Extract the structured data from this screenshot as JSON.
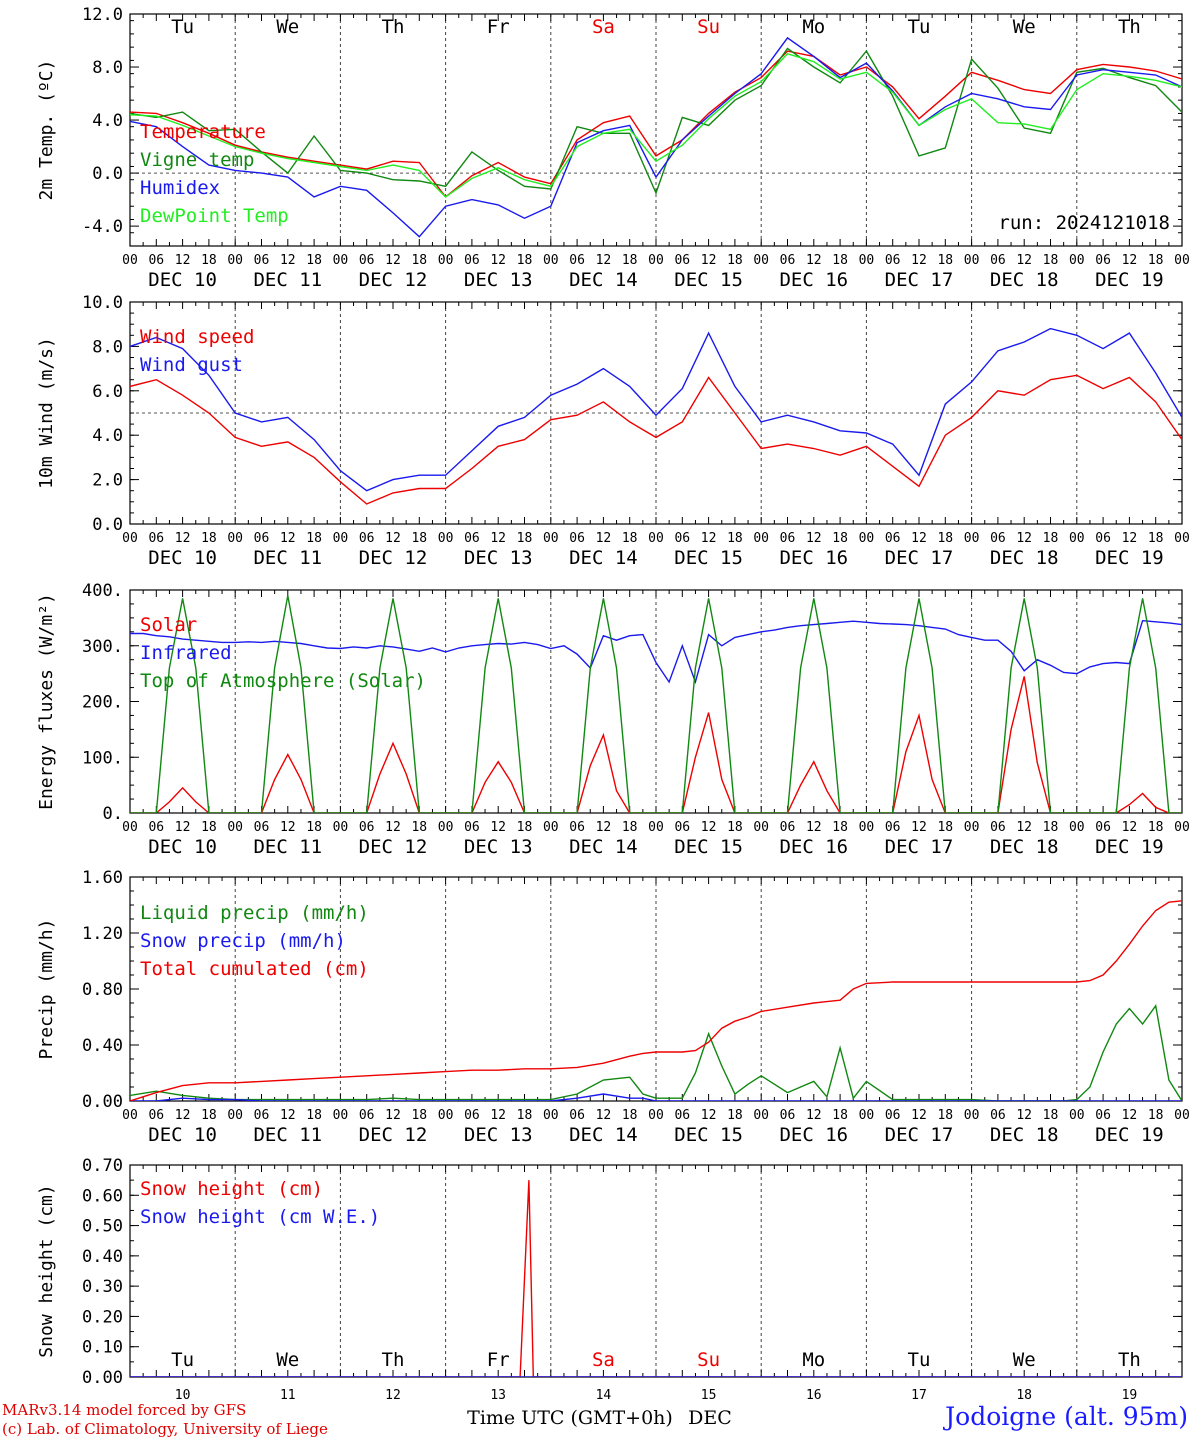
{
  "colors": {
    "red": "#ee0000",
    "green": "#118811",
    "blue": "#1a1aee",
    "lightgreen": "#22ee22",
    "black": "#000000"
  },
  "days": [
    "Tu",
    "We",
    "Th",
    "Fr",
    "Sa",
    "Su",
    "Mo",
    "Tu",
    "We",
    "Th"
  ],
  "weekend_days": [
    4,
    5
  ],
  "dates": [
    "DEC 10",
    "DEC 11",
    "DEC 12",
    "DEC 13",
    "DEC 14",
    "DEC 15",
    "DEC 16",
    "DEC 17",
    "DEC 18",
    "DEC 19"
  ],
  "hour_ticks": [
    "00",
    "06",
    "12",
    "18"
  ],
  "hour_end": "00",
  "bottom_dates": [
    "10",
    "11",
    "12",
    "13",
    "14",
    "15",
    "16",
    "17",
    "18",
    "19"
  ],
  "xlabel": "Time UTC (GMT+0h)",
  "month": "DEC",
  "footer": {
    "line1": "MARv3.14 model forced by GFS",
    "line2": "(c) Lab. of Climatology, University of Liege"
  },
  "station": "Jodoigne (alt. 95m)",
  "chart_data": [
    {
      "type": "line",
      "ylabel": "2m Temp. (ºC)",
      "ylim": [
        -5.5,
        12
      ],
      "yticks": [
        -4,
        0,
        4,
        8,
        12
      ],
      "yticklabels": [
        "-4.0",
        "0.0",
        "4.0",
        "8.0",
        "12.0"
      ],
      "refline": 0,
      "annotation": "run: 2024121018",
      "x": [
        0,
        6,
        12,
        18,
        24,
        30,
        36,
        42,
        48,
        54,
        60,
        66,
        72,
        78,
        84,
        90,
        96,
        102,
        108,
        114,
        120,
        126,
        132,
        138,
        144,
        150,
        156,
        162,
        168,
        174,
        180,
        186,
        192,
        198,
        204,
        210,
        216,
        222,
        228,
        234,
        240
      ],
      "series": [
        {
          "name": "Temperature",
          "color": "red",
          "values": [
            4.6,
            4.5,
            3.8,
            3.0,
            2.1,
            1.6,
            1.2,
            0.9,
            0.6,
            0.3,
            0.9,
            0.8,
            -1.8,
            -0.2,
            0.8,
            -0.3,
            -0.8,
            2.5,
            3.8,
            4.3,
            1.3,
            2.5,
            4.5,
            6.1,
            7.2,
            9.2,
            8.8,
            7.4,
            8.0,
            6.5,
            4.1,
            5.8,
            7.6,
            7.0,
            6.3,
            6.0,
            7.8,
            8.2,
            8.0,
            7.7,
            7.1
          ]
        },
        {
          "name": "Vigne temp",
          "color": "green",
          "values": [
            4.5,
            4.2,
            4.6,
            3.2,
            3.3,
            1.6,
            0.0,
            2.8,
            0.2,
            0.0,
            -0.5,
            -0.6,
            -1.0,
            1.6,
            0.2,
            -1.0,
            -1.2,
            3.5,
            3.0,
            3.0,
            -1.5,
            4.2,
            3.6,
            5.5,
            6.6,
            9.4,
            8.0,
            6.8,
            9.2,
            5.8,
            1.3,
            1.9,
            8.6,
            6.4,
            3.4,
            3.0,
            7.6,
            7.9,
            7.2,
            6.6,
            4.6
          ]
        },
        {
          "name": "Humidex",
          "color": "blue",
          "values": [
            3.9,
            3.5,
            2.0,
            0.6,
            0.2,
            0.0,
            -0.3,
            -1.8,
            -1.0,
            -1.3,
            -3.0,
            -4.8,
            -2.5,
            -2.0,
            -2.4,
            -3.4,
            -2.5,
            2.3,
            3.2,
            3.6,
            -0.3,
            2.5,
            4.3,
            6.0,
            7.5,
            10.2,
            8.8,
            7.2,
            8.3,
            6.2,
            3.6,
            5.0,
            6.0,
            5.6,
            5.0,
            4.8,
            7.4,
            7.8,
            7.6,
            7.4,
            6.5
          ]
        },
        {
          "name": "DewPoint Temp",
          "color": "lightgreen",
          "values": [
            4.4,
            4.3,
            3.6,
            2.8,
            2.0,
            1.5,
            1.1,
            0.8,
            0.5,
            0.2,
            0.6,
            0.2,
            -1.8,
            -0.4,
            0.4,
            -0.5,
            -1.0,
            2.0,
            3.0,
            3.3,
            0.9,
            2.1,
            4.1,
            5.8,
            6.9,
            9.0,
            8.4,
            7.1,
            7.6,
            6.1,
            3.6,
            4.8,
            5.6,
            3.8,
            3.7,
            3.3,
            6.3,
            7.5,
            7.3,
            7.0,
            6.5
          ]
        }
      ]
    },
    {
      "type": "line",
      "ylabel": "10m Wind (m/s)",
      "ylim": [
        0,
        10
      ],
      "yticks": [
        0,
        2,
        4,
        6,
        8,
        10
      ],
      "yticklabels": [
        "0.0",
        "2.0",
        "4.0",
        "6.0",
        "8.0",
        "10.0"
      ],
      "refline": 5,
      "x": [
        0,
        6,
        12,
        18,
        24,
        30,
        36,
        42,
        48,
        54,
        60,
        66,
        72,
        78,
        84,
        90,
        96,
        102,
        108,
        114,
        120,
        126,
        132,
        138,
        144,
        150,
        156,
        162,
        168,
        174,
        180,
        186,
        192,
        198,
        204,
        210,
        216,
        222,
        228,
        234,
        240
      ],
      "series": [
        {
          "name": "Wind speed",
          "color": "red",
          "values": [
            6.2,
            6.5,
            5.8,
            5.0,
            3.9,
            3.5,
            3.7,
            3.0,
            1.9,
            0.9,
            1.4,
            1.6,
            1.6,
            2.5,
            3.5,
            3.8,
            4.7,
            4.9,
            5.5,
            4.6,
            3.9,
            4.6,
            6.6,
            5.0,
            3.4,
            3.6,
            3.4,
            3.1,
            3.5,
            2.6,
            1.7,
            4.0,
            4.8,
            6.0,
            5.8,
            6.5,
            6.7,
            6.1,
            6.6,
            5.5,
            3.8
          ]
        },
        {
          "name": "Wind gust",
          "color": "blue",
          "values": [
            8.0,
            8.4,
            7.9,
            6.7,
            5.0,
            4.6,
            4.8,
            3.8,
            2.4,
            1.5,
            2.0,
            2.2,
            2.2,
            3.3,
            4.4,
            4.8,
            5.8,
            6.3,
            7.0,
            6.2,
            4.9,
            6.1,
            8.6,
            6.2,
            4.6,
            4.9,
            4.6,
            4.2,
            4.1,
            3.6,
            2.2,
            5.4,
            6.4,
            7.8,
            8.2,
            8.8,
            8.5,
            7.9,
            8.6,
            6.8,
            4.8
          ]
        }
      ]
    },
    {
      "type": "line",
      "ylabel": "Energy fluxes (W/m²)",
      "ylim": [
        0,
        400
      ],
      "yticks": [
        0,
        100,
        200,
        300,
        400
      ],
      "yticklabels": [
        "0.",
        "100.",
        "200.",
        "300.",
        "400."
      ],
      "x": [
        0,
        3,
        6,
        9,
        12,
        15,
        18,
        21,
        24,
        27,
        30,
        33,
        36,
        39,
        42,
        45,
        48,
        51,
        54,
        57,
        60,
        63,
        66,
        69,
        72,
        75,
        78,
        81,
        84,
        87,
        90,
        93,
        96,
        99,
        102,
        105,
        108,
        111,
        114,
        117,
        120,
        123,
        126,
        129,
        132,
        135,
        138,
        141,
        144,
        147,
        150,
        153,
        156,
        159,
        162,
        165,
        168,
        171,
        174,
        177,
        180,
        183,
        186,
        189,
        192,
        195,
        198,
        201,
        204,
        207,
        210,
        213,
        216,
        219,
        222,
        225,
        228,
        231,
        234,
        237,
        240
      ],
      "series": [
        {
          "name": "Solar",
          "color": "red",
          "values": [
            0,
            0,
            0,
            20,
            45,
            20,
            0,
            0,
            0,
            0,
            0,
            60,
            105,
            60,
            0,
            0,
            0,
            0,
            0,
            70,
            125,
            70,
            0,
            0,
            0,
            0,
            0,
            55,
            92,
            55,
            0,
            0,
            0,
            0,
            0,
            85,
            140,
            40,
            0,
            0,
            0,
            0,
            0,
            100,
            180,
            60,
            0,
            0,
            0,
            0,
            0,
            50,
            92,
            40,
            0,
            0,
            0,
            0,
            0,
            110,
            175,
            60,
            0,
            0,
            0,
            0,
            0,
            150,
            245,
            90,
            0,
            0,
            0,
            0,
            0,
            0,
            15,
            35,
            10,
            0,
            0
          ]
        },
        {
          "name": "Infrared",
          "color": "blue",
          "values": [
            322,
            322,
            318,
            316,
            312,
            310,
            308,
            306,
            306,
            307,
            306,
            308,
            306,
            304,
            300,
            296,
            295,
            298,
            296,
            300,
            298,
            294,
            290,
            296,
            289,
            296,
            300,
            302,
            304,
            303,
            306,
            302,
            295,
            300,
            285,
            260,
            318,
            310,
            318,
            320,
            270,
            235,
            300,
            235,
            320,
            300,
            315,
            320,
            325,
            328,
            333,
            336,
            338,
            340,
            342,
            344,
            342,
            340,
            339,
            338,
            336,
            333,
            330,
            320,
            315,
            310,
            310,
            290,
            255,
            275,
            265,
            252,
            250,
            262,
            268,
            270,
            268,
            345,
            343,
            341,
            338
          ]
        },
        {
          "name": "Top of Atmosphere (Solar)",
          "color": "green",
          "values": [
            0,
            0,
            0,
            260,
            385,
            260,
            0,
            0,
            0,
            0,
            0,
            260,
            390,
            260,
            0,
            0,
            0,
            0,
            0,
            260,
            385,
            260,
            0,
            0,
            0,
            0,
            0,
            260,
            385,
            260,
            0,
            0,
            0,
            0,
            0,
            260,
            385,
            260,
            0,
            0,
            0,
            0,
            0,
            260,
            385,
            260,
            0,
            0,
            0,
            0,
            0,
            260,
            385,
            260,
            0,
            0,
            0,
            0,
            0,
            260,
            385,
            260,
            0,
            0,
            0,
            0,
            0,
            260,
            385,
            260,
            0,
            0,
            0,
            0,
            0,
            0,
            260,
            385,
            260,
            0,
            0
          ]
        }
      ]
    },
    {
      "type": "line",
      "ylabel": "Precip (mm/h)",
      "ylim": [
        0,
        1.6
      ],
      "yticks": [
        0,
        0.4,
        0.8,
        1.2,
        1.6
      ],
      "yticklabels": [
        "0.00",
        "0.40",
        "0.80",
        "1.20",
        "1.60"
      ],
      "x": [
        0,
        6,
        12,
        18,
        24,
        30,
        36,
        42,
        48,
        54,
        60,
        66,
        72,
        78,
        84,
        90,
        96,
        102,
        108,
        114,
        117,
        120,
        126,
        129,
        132,
        135,
        138,
        141,
        144,
        150,
        156,
        159,
        162,
        165,
        168,
        174,
        180,
        186,
        192,
        198,
        204,
        210,
        213,
        216,
        219,
        222,
        225,
        228,
        231,
        234,
        237,
        240
      ],
      "series": [
        {
          "name": "Liquid precip (mm/h)",
          "color": "green",
          "values": [
            0.04,
            0.07,
            0.04,
            0.02,
            0.01,
            0.01,
            0.01,
            0.01,
            0.01,
            0.01,
            0.02,
            0.01,
            0.01,
            0.01,
            0.01,
            0.01,
            0.01,
            0.05,
            0.15,
            0.17,
            0.05,
            0.02,
            0.02,
            0.2,
            0.48,
            0.25,
            0.05,
            0.12,
            0.18,
            0.06,
            0.14,
            0.03,
            0.38,
            0.02,
            0.14,
            0.01,
            0.01,
            0.01,
            0.01,
            0.0,
            0.0,
            0.0,
            0.0,
            0.01,
            0.1,
            0.35,
            0.55,
            0.66,
            0.55,
            0.68,
            0.15,
            0.0
          ]
        },
        {
          "name": "Snow precip (mm/h)",
          "color": "blue",
          "values": [
            0.0,
            0.0,
            0.02,
            0.01,
            0.01,
            0.0,
            0.0,
            0.0,
            0.0,
            0.0,
            0.0,
            0.0,
            0.0,
            0.0,
            0.0,
            0.0,
            0.0,
            0.02,
            0.05,
            0.02,
            0.02,
            0.0,
            0.0,
            0.0,
            0.0,
            0.0,
            0.0,
            0.0,
            0.0,
            0.0,
            0.0,
            0.0,
            0.0,
            0.0,
            0.0,
            0.0,
            0.0,
            0.0,
            0.0,
            0.0,
            0.0,
            0.0,
            0.0,
            0.0,
            0.0,
            0.0,
            0.0,
            0.0,
            0.0,
            0.0,
            0.0,
            0.0
          ]
        },
        {
          "name": "Total cumulated (cm)",
          "color": "red",
          "values": [
            0.0,
            0.06,
            0.11,
            0.13,
            0.13,
            0.14,
            0.15,
            0.16,
            0.17,
            0.18,
            0.19,
            0.2,
            0.21,
            0.22,
            0.22,
            0.23,
            0.23,
            0.24,
            0.27,
            0.32,
            0.34,
            0.35,
            0.35,
            0.36,
            0.42,
            0.52,
            0.57,
            0.6,
            0.64,
            0.67,
            0.7,
            0.71,
            0.72,
            0.8,
            0.84,
            0.85,
            0.85,
            0.85,
            0.85,
            0.85,
            0.85,
            0.85,
            0.85,
            0.85,
            0.86,
            0.9,
            1.0,
            1.12,
            1.25,
            1.36,
            1.42,
            1.43
          ]
        }
      ]
    },
    {
      "type": "line",
      "ylabel": "Snow height (cm)",
      "ylim": [
        0,
        0.7
      ],
      "yticks": [
        0,
        0.1,
        0.2,
        0.3,
        0.4,
        0.5,
        0.6,
        0.7
      ],
      "yticklabels": [
        "0.00",
        "0.10",
        "0.20",
        "0.30",
        "0.40",
        "0.50",
        "0.60",
        "0.70"
      ],
      "x": [
        0,
        89,
        91,
        92,
        93,
        240
      ],
      "series": [
        {
          "name": "Snow height (cm)",
          "color": "red",
          "values": [
            0,
            0,
            0.65,
            0.0,
            0,
            0
          ]
        },
        {
          "name": "Snow height (cm W.E.)",
          "color": "blue",
          "values": [
            0,
            0,
            0,
            0,
            0,
            0
          ]
        }
      ]
    }
  ]
}
